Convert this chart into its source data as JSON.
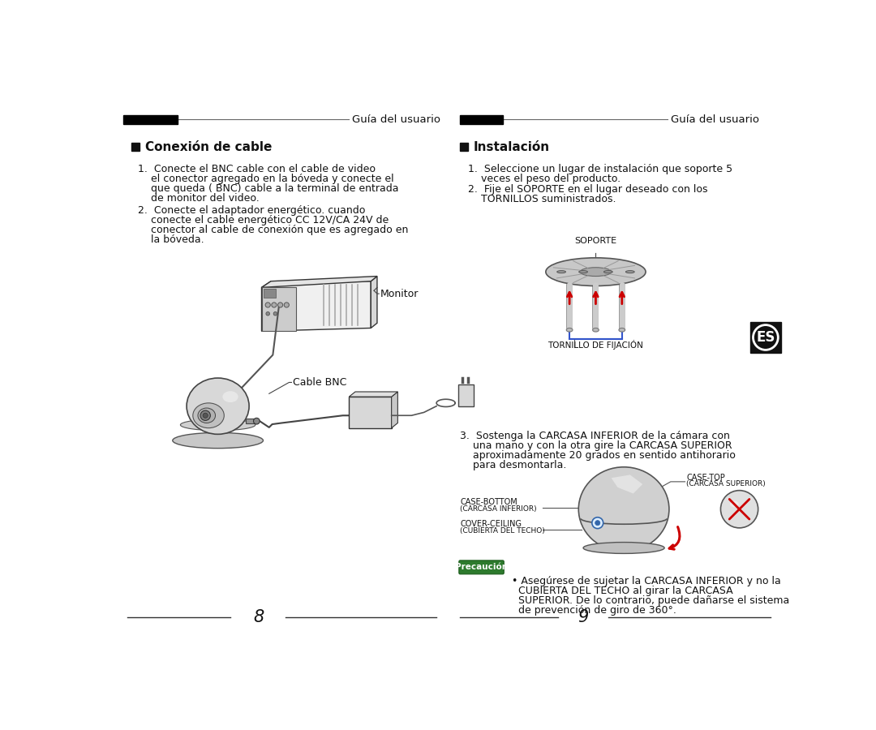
{
  "bg_color": "#ffffff",
  "header_text": "Guía del usuario",
  "left_section_title": "Conexión de cable",
  "right_section_title": "Instalación",
  "left_lines1": [
    "1.  Conecte el BNC cable con el cable de video",
    "    el conector agregado en la bóveda y conecte el",
    "    que queda ( BNC) cable a la terminal de entrada",
    "    de monitor del video."
  ],
  "left_lines2": [
    "2.  Conecte el adaptador energético. cuando",
    "    conecte el cable energético CC 12V/CA 24V de",
    "    conector al cable de conexión que es agregado en",
    "    la bóveda."
  ],
  "right_lines1": [
    "1.  Seleccione un lugar de instalación que soporte 5",
    "    veces el peso del producto."
  ],
  "right_lines2": [
    "2.  Fije el SOPORTE en el lugar deseado con los",
    "    TORNILLOS suministrados."
  ],
  "right_lines3": [
    "3.  Sostenga la CARCASA INFERIOR de la cámara con",
    "    una mano y con la otra gire la CARCASA SUPERIOR",
    "    aproximadamente 20 grados en sentido antihorario",
    "    para desmontarla."
  ],
  "precaucion_lines": [
    " • Asegúrese de sujetar la CARCASA INFERIOR y no la",
    "   CUBIERTA DEL TECHO al girar la CARCASA",
    "   SUPERIOR. De lo contrario, puede dañarse el sistema",
    "   de prevención de giro de 360°."
  ],
  "monitor_label": "Monitor",
  "cable_bnc_label": "Cable BNC",
  "soporte_label": "SOPORTE",
  "tornillo_label": "TORNILLO DE FIJACIÓN",
  "case_top_label": "CASE-TOP",
  "case_top_sub": "(CARCASA SUPERIOR)",
  "case_bottom_label": "CASE-BOTTOM",
  "case_bottom_sub": "(CARCASA INFERIOR)",
  "cover_ceiling_label": "COVER-CEILING",
  "cover_ceiling_sub": "(CUBIERTA DEL TECHO)",
  "page_left": "8",
  "page_right": "9"
}
